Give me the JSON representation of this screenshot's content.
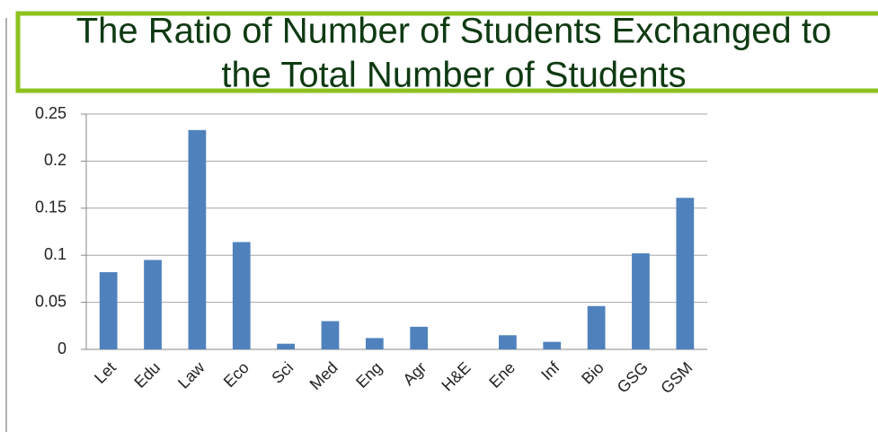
{
  "chart_data": {
    "type": "bar",
    "title": [
      "The Ratio of Number of Students Exchanged to",
      "the Total Number of Students"
    ],
    "categories": [
      "Let",
      "Edu",
      "Law",
      "Eco",
      "Sci",
      "Med",
      "Eng",
      "Agr",
      "H&E",
      "Ene",
      "Inf",
      "Bio",
      "GSG",
      "GSM"
    ],
    "values": [
      0.082,
      0.095,
      0.233,
      0.114,
      0.006,
      0.03,
      0.012,
      0.024,
      0,
      0.015,
      0.008,
      0.046,
      0.102,
      0.161
    ],
    "color": "#4f81bd",
    "ylim": [
      0,
      0.25
    ],
    "yticks": [
      0,
      0.05,
      0.1,
      0.15,
      0.2,
      0.25
    ],
    "grid": true
  }
}
